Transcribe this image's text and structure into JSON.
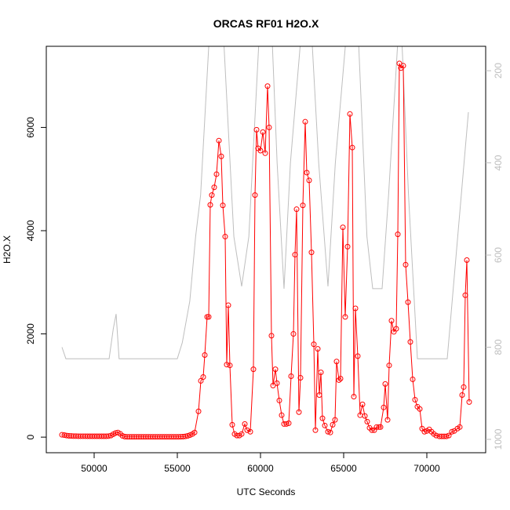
{
  "chart_data": {
    "type": "line",
    "title": "ORCAS RF01 H2O.X",
    "x_label": "UTC Seconds",
    "y_label": "H2O.X",
    "xlim": [
      47123,
      73538
    ],
    "xticks": [
      50000,
      55000,
      60000,
      65000,
      70000
    ],
    "ylim": [
      -302,
      7572
    ],
    "yticks": [
      0,
      2000,
      4000,
      6000
    ],
    "y2lim": [
      1029,
      147
    ],
    "y2ticks": [
      200,
      400,
      600,
      800,
      1000
    ],
    "y2_color": "#bebebe",
    "series": [
      {
        "color": "#bebebe",
        "axis": "y2",
        "markers": false,
        "x": [
          48066,
          48300,
          50900,
          51150,
          51320,
          51500,
          55000,
          55300,
          55750,
          56100,
          56400,
          56900,
          57300,
          57800,
          58400,
          58868,
          59300,
          59900,
          60610,
          61000,
          61415,
          61800,
          62400,
          62970,
          63500,
          64057,
          64500,
          65330,
          65900,
          66400,
          66745,
          67311,
          67700,
          68400,
          68900,
          69434,
          71226,
          72500
        ],
        "values": [
          800,
          825,
          825,
          760,
          728,
          825,
          825,
          790,
          700,
          560,
          470,
          140,
          50,
          140,
          560,
          668,
          560,
          140,
          50,
          400,
          673,
          400,
          140,
          50,
          400,
          668,
          400,
          50,
          140,
          560,
          673,
          673,
          470,
          50,
          470,
          825,
          825,
          290
        ]
      },
      {
        "color": "#ff0000",
        "markers": true,
        "x": [
          48066,
          48206,
          48346,
          48486,
          48626,
          48766,
          48906,
          49046,
          49186,
          49326,
          49466,
          49606,
          49746,
          49886,
          50026,
          50166,
          50306,
          50446,
          50586,
          50726,
          50866,
          51006,
          51146,
          51286,
          51426,
          51566,
          51706,
          51846,
          51986,
          52126,
          52266,
          52406,
          52546,
          52686,
          52826,
          52966,
          53106,
          53246,
          53386,
          53526,
          53666,
          53806,
          53946,
          54086,
          54226,
          54366,
          54506,
          54646,
          54786,
          54926,
          55066,
          55206,
          55346,
          55486,
          55626,
          55766,
          55906,
          56038,
          56274,
          56415,
          56557,
          56651,
          56792,
          56887,
          56981,
          57075,
          57217,
          57358,
          57500,
          57641,
          57736,
          57877,
          57971,
          58066,
          58160,
          58302,
          58443,
          58585,
          58726,
          58868,
          59057,
          59198,
          59387,
          59575,
          59670,
          59764,
          59858,
          60000,
          60142,
          60283,
          60425,
          60519,
          60660,
          60755,
          60896,
          60991,
          61132,
          61274,
          61415,
          61557,
          61698,
          61840,
          61981,
          62075,
          62170,
          62311,
          62406,
          62547,
          62689,
          62783,
          62925,
          63066,
          63208,
          63302,
          63443,
          63538,
          63632,
          63726,
          63868,
          64057,
          64198,
          64340,
          64481,
          64575,
          64717,
          64811,
          64953,
          65094,
          65236,
          65377,
          65519,
          65613,
          65708,
          65849,
          65991,
          66132,
          66274,
          66415,
          66557,
          66698,
          66840,
          66981,
          67123,
          67217,
          67406,
          67500,
          67641,
          67736,
          67877,
          68019,
          68160,
          68255,
          68349,
          68443,
          68585,
          68726,
          68868,
          69009,
          69151,
          69292,
          69434,
          69575,
          69717,
          69858,
          70000,
          70142,
          70283,
          70425,
          70566,
          70755,
          70896,
          71038,
          71179,
          71321,
          71509,
          71651,
          71840,
          71981,
          72123,
          72217,
          72311,
          72406,
          72547
        ],
        "values": [
          45,
          40,
          30,
          25,
          22,
          20,
          20,
          18,
          18,
          18,
          18,
          17,
          17,
          17,
          17,
          17,
          17,
          17,
          17,
          17,
          20,
          30,
          55,
          80,
          90,
          65,
          25,
          10,
          5,
          5,
          5,
          5,
          5,
          5,
          5,
          5,
          5,
          5,
          5,
          5,
          5,
          5,
          5,
          5,
          5,
          5,
          5,
          5,
          5,
          5,
          5,
          8,
          10,
          15,
          25,
          40,
          60,
          90,
          500,
          1090,
          1165,
          1590,
          2330,
          2330,
          4500,
          4690,
          4840,
          5095,
          5745,
          5440,
          4490,
          3885,
          1405,
          2555,
          1390,
          240,
          60,
          30,
          30,
          60,
          255,
          135,
          105,
          1315,
          4690,
          5955,
          5595,
          5550,
          5910,
          5500,
          6800,
          6000,
          1965,
          1000,
          1315,
          1045,
          710,
          425,
          255,
          255,
          270,
          1180,
          2000,
          3535,
          4415,
          485,
          1150,
          4490,
          6110,
          5125,
          4975,
          3580,
          1800,
          135,
          1710,
          815,
          1255,
          365,
          225,
          105,
          90,
          240,
          335,
          1465,
          1105,
          1135,
          4065,
          2330,
          3690,
          6260,
          5610,
          785,
          2495,
          1570,
          425,
          635,
          410,
          300,
          180,
          135,
          135,
          195,
          195,
          195,
          575,
          1030,
          335,
          1390,
          2255,
          2040,
          2100,
          3930,
          7240,
          7150,
          7195,
          3340,
          2615,
          1845,
          1120,
          725,
          590,
          545,
          165,
          105,
          120,
          150,
          105,
          60,
          30,
          15,
          15,
          15,
          15,
          30,
          105,
          120,
          165,
          195,
          815,
          970,
          2750,
          3430,
          680
        ]
      }
    ]
  }
}
